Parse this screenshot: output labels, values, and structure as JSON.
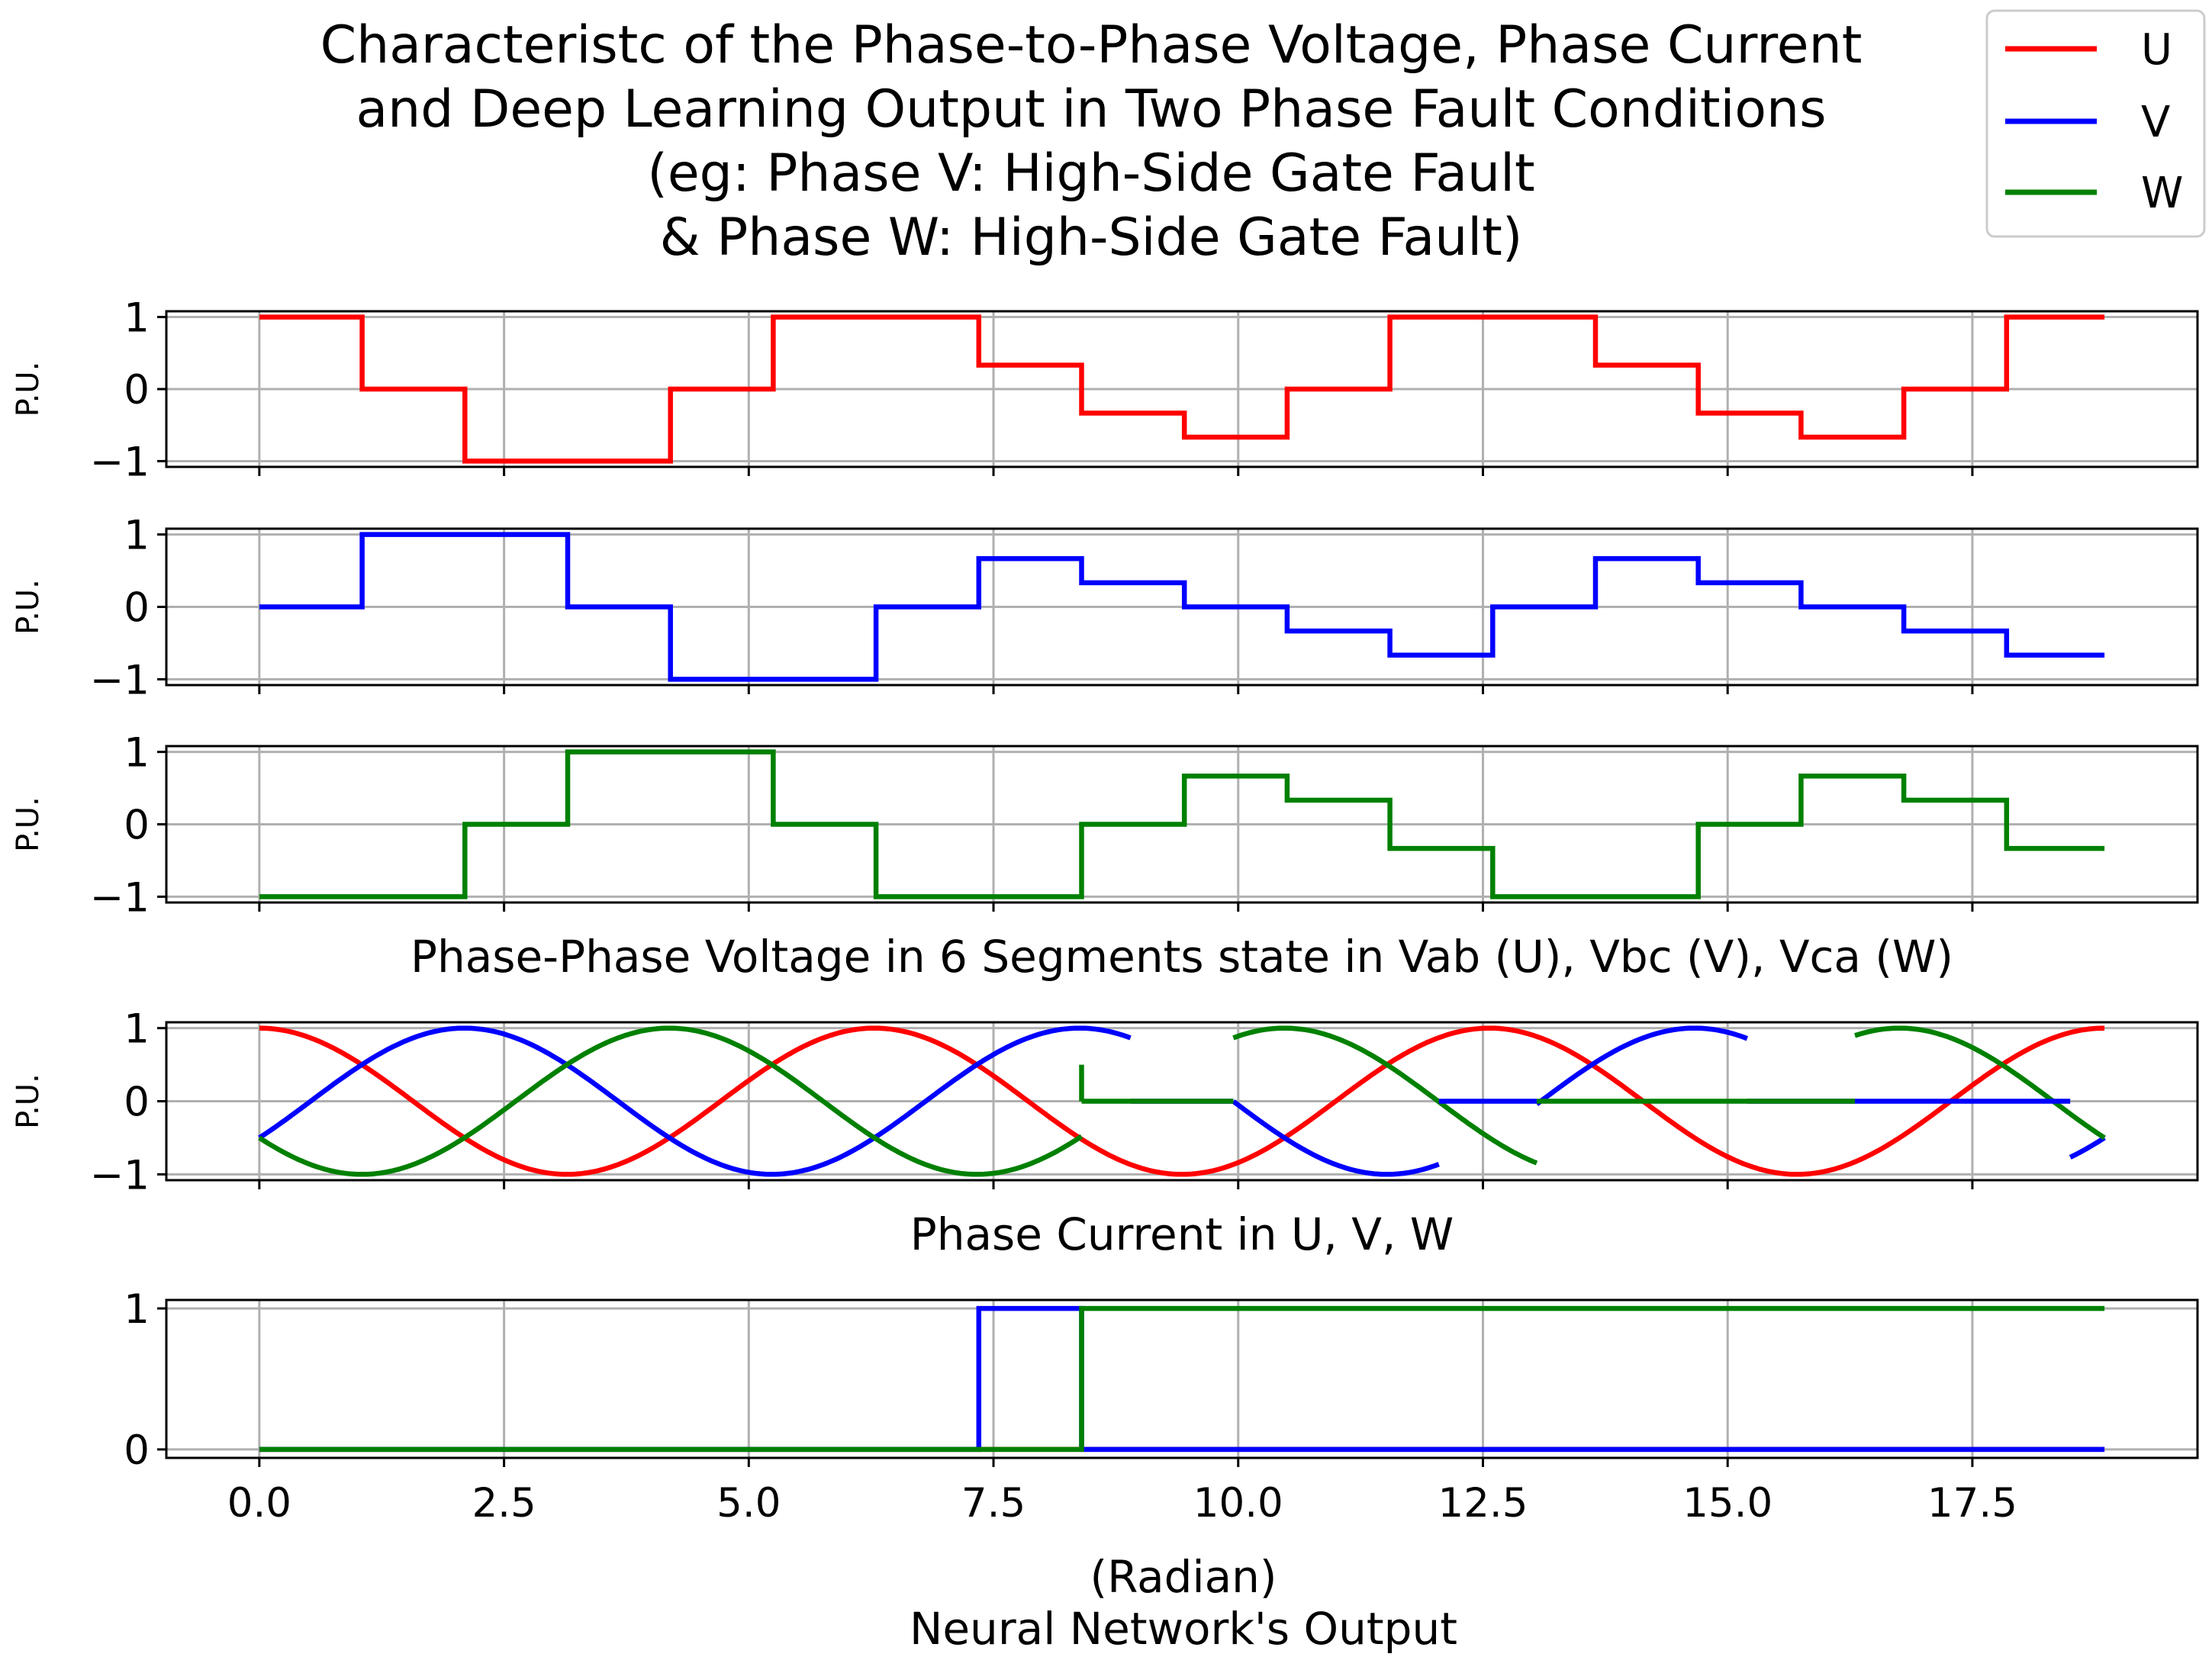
{
  "title_lines": [
    "Characteristc of the Phase-to-Phase Voltage, Phase Current",
    "and Deep Learning Output in Two Phase Fault Conditions",
    "(eg: Phase V: High-Side Gate Fault",
    "& Phase W: High-Side Gate Fault)"
  ],
  "legend": [
    {
      "label": "U",
      "color": "#ff0000"
    },
    {
      "label": "V",
      "color": "#0000ff"
    },
    {
      "label": "W",
      "color": "#008000"
    }
  ],
  "chart_data": {
    "type": "line",
    "xlim": [
      -0.95,
      19.8
    ],
    "x_ticks": [
      0.0,
      2.5,
      5.0,
      7.5,
      10.0,
      12.5,
      15.0,
      17.5
    ],
    "x_tick_labels": [
      "0.0",
      "2.5",
      "5.0",
      "7.5",
      "10.0",
      "12.5",
      "15.0",
      "17.5"
    ],
    "grid": true,
    "legend_position": "top-right",
    "xlabel_lines": [
      "(Radian)",
      "Neural Network's Output"
    ],
    "panels": [
      {
        "kind": "step",
        "ylabel": "P.U.",
        "ylim": [
          -1.08,
          1.08
        ],
        "y_ticks": [
          1,
          0,
          -1
        ],
        "y_tick_labels": [
          "1",
          "0",
          "−1"
        ],
        "series": [
          {
            "name": "U",
            "color": "#ff0000",
            "x": [
              0,
              1.05,
              2.1,
              3.15,
              4.2,
              5.25,
              6.3,
              7.35,
              8.4,
              9.45,
              10.5,
              11.55,
              12.6,
              13.65,
              14.7,
              15.75,
              16.8,
              17.85,
              18.85
            ],
            "y": [
              1,
              0,
              -1,
              -1,
              0,
              1,
              1,
              0.333,
              -0.333,
              -0.667,
              0,
              1,
              1,
              0.333,
              -0.333,
              -0.667,
              0,
              1,
              1
            ]
          }
        ]
      },
      {
        "kind": "step",
        "ylabel": "P.U.",
        "ylim": [
          -1.08,
          1.08
        ],
        "y_ticks": [
          1,
          0,
          -1
        ],
        "y_tick_labels": [
          "1",
          "0",
          "−1"
        ],
        "series": [
          {
            "name": "V",
            "color": "#0000ff",
            "x": [
              0,
              1.05,
              2.1,
              3.15,
              4.2,
              5.25,
              6.3,
              7.35,
              8.4,
              9.45,
              10.5,
              11.55,
              12.6,
              13.65,
              14.7,
              15.75,
              16.8,
              17.85,
              18.85
            ],
            "y": [
              0,
              1,
              1,
              0,
              -1,
              -1,
              0,
              0.667,
              0.333,
              0,
              -0.333,
              -0.667,
              0,
              0.667,
              0.333,
              0,
              -0.333,
              -0.667,
              -0.667
            ]
          }
        ]
      },
      {
        "kind": "step",
        "ylabel": "P.U.",
        "ylim": [
          -1.08,
          1.08
        ],
        "y_ticks": [
          1,
          0,
          -1
        ],
        "y_tick_labels": [
          "1",
          "0",
          "−1"
        ],
        "bottom_title": "Phase-Phase Voltage in 6 Segments state in Vab (U), Vbc (V), Vca (W)",
        "series": [
          {
            "name": "W",
            "color": "#008000",
            "x": [
              0,
              1.05,
              2.1,
              3.15,
              4.2,
              5.25,
              6.3,
              7.35,
              8.4,
              9.45,
              10.5,
              11.55,
              12.6,
              13.65,
              14.7,
              15.75,
              16.8,
              17.85,
              18.85
            ],
            "y": [
              -1,
              -1,
              0,
              1,
              1,
              0,
              -1,
              -1,
              0,
              0.667,
              0.333,
              -0.333,
              -1,
              -1,
              0,
              0.667,
              0.333,
              -0.333,
              -0.333
            ]
          }
        ]
      },
      {
        "kind": "line",
        "ylabel": "P.U.",
        "ylim": [
          -1.08,
          1.08
        ],
        "y_ticks": [
          1,
          0,
          -1
        ],
        "y_tick_labels": [
          "1",
          "0",
          "−1"
        ],
        "bottom_title": "Phase Current in U, V, W",
        "series": [
          {
            "name": "U",
            "color": "#ff0000",
            "function": "cos",
            "phase_deg": 0,
            "segments": [
              [
                0,
                18.85
              ]
            ]
          },
          {
            "name": "V",
            "color": "#0000ff",
            "function": "cos",
            "phase_deg": -120,
            "segments": [
              [
                0,
                8.9
              ],
              [
                9.95,
                12.05
              ],
              [
                13.05,
                15.2
              ],
              [
                18.5,
                18.85
              ]
            ]
          },
          {
            "name": "W",
            "color": "#008000",
            "function": "cos",
            "phase_deg": 120,
            "segments": [
              [
                0,
                8.4
              ],
              [
                9.95,
                13.05
              ],
              [
                16.3,
                18.85
              ]
            ]
          },
          {
            "name": "V",
            "color": "#0000ff",
            "function": "flat",
            "value": 0,
            "segments": [
              [
                8.9,
                9.95
              ],
              [
                12.05,
                13.05
              ],
              [
                15.2,
                18.5
              ]
            ]
          },
          {
            "name": "W",
            "color": "#008000",
            "function": "flat",
            "value": 0,
            "segments": [
              [
                8.4,
                9.95
              ],
              [
                13.05,
                16.3
              ]
            ]
          },
          {
            "name": "W",
            "color": "#008000",
            "function": "vertical",
            "x": 8.4,
            "from": 0.5,
            "to": 0
          }
        ]
      },
      {
        "kind": "step",
        "ylabel": "",
        "ylim": [
          -0.06,
          1.06
        ],
        "y_ticks": [
          1,
          0
        ],
        "y_tick_labels": [
          "1",
          "0"
        ],
        "series": [
          {
            "name": "U",
            "color": "#ff0000",
            "x": [
              0,
              18.85
            ],
            "y": [
              0,
              0
            ]
          },
          {
            "name": "V",
            "color": "#0000ff",
            "x": [
              0,
              7.35,
              8.4,
              18.85
            ],
            "y": [
              0,
              1,
              0,
              0
            ]
          },
          {
            "name": "W",
            "color": "#008000",
            "x": [
              0,
              8.4,
              18.85
            ],
            "y": [
              0,
              1,
              1
            ]
          }
        ]
      }
    ]
  }
}
